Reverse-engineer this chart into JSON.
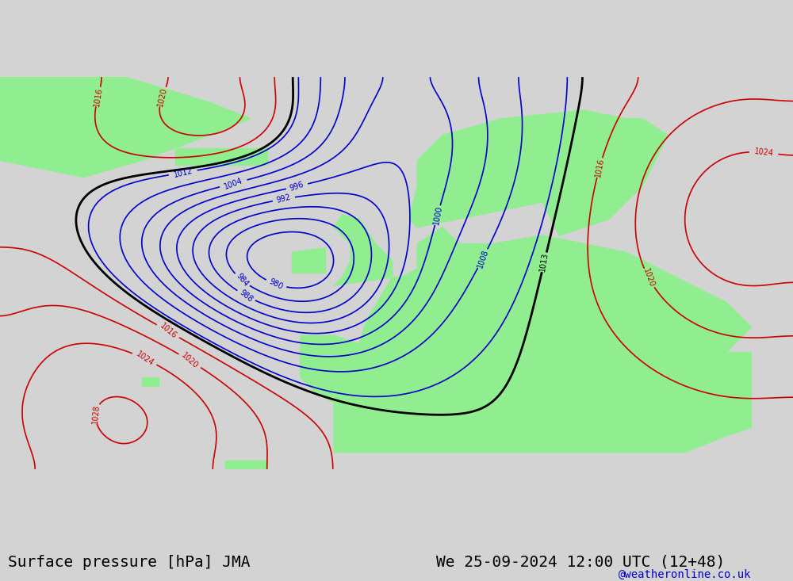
{
  "title_left": "Surface pressure [hPa] JMA",
  "title_right": "We 25-09-2024 12:00 UTC (12+48)",
  "watermark": "@weatheronline.co.uk",
  "bg_ocean": "#d3d3d3",
  "bg_land": "#90EE90",
  "bg_figure": "#d3d3d3",
  "contour_blue_color": "#0000cc",
  "contour_red_color": "#cc0000",
  "contour_black_color": "#000000",
  "font_family": "monospace",
  "title_fontsize": 14,
  "watermark_fontsize": 10,
  "label_fontsize": 8
}
